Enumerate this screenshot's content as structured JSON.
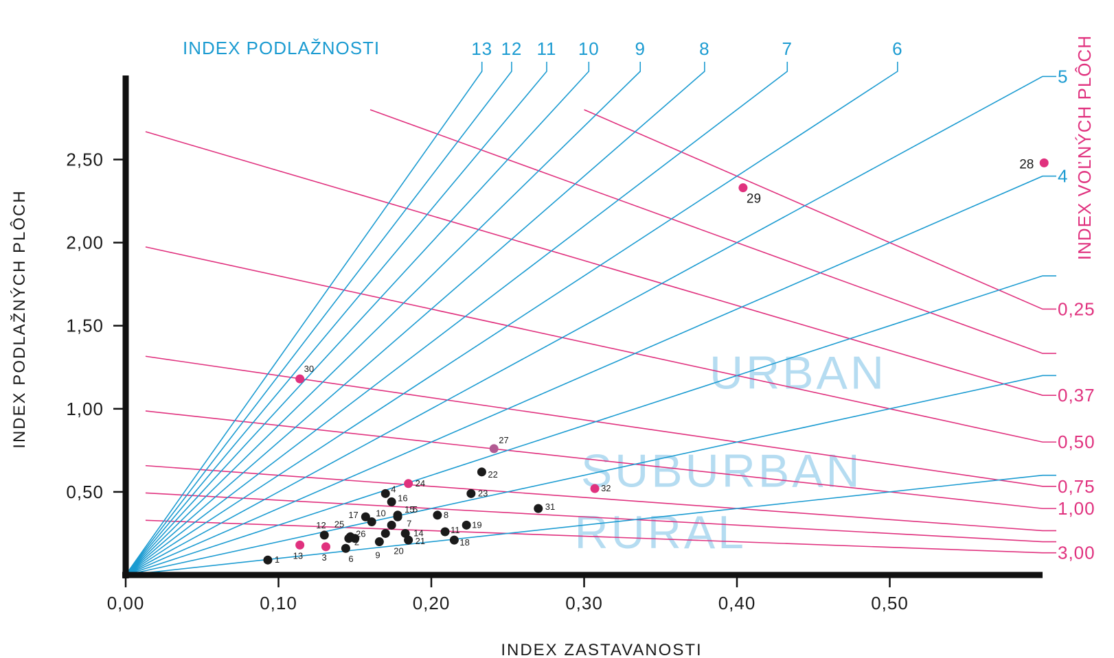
{
  "chart_data": {
    "type": "scatter",
    "title": "",
    "xlabel": "INDEX ZASTAVANOSTI",
    "ylabel": "INDEX PODLAŽNÝCH PLÔCH",
    "fsi_axis_title": "INDEX PODLAŽNOSTI",
    "osr_axis_title": "INDEX VOĽNÝCH PLÔCH",
    "xlim": [
      0,
      0.6
    ],
    "ylim": [
      0,
      2.8
    ],
    "x_ticks": [
      "0,00",
      "0,10",
      "0,20",
      "0,30",
      "0,40",
      "0,50"
    ],
    "x_tick_values": [
      0,
      0.1,
      0.2,
      0.3,
      0.4,
      0.5
    ],
    "y_ticks": [
      "0,50",
      "1,00",
      "1,50",
      "2,00",
      "2,50"
    ],
    "y_tick_values": [
      0.5,
      1.0,
      1.5,
      2.0,
      2.5
    ],
    "fsi_lines": [
      {
        "label": "13",
        "value": 13
      },
      {
        "label": "12",
        "value": 12
      },
      {
        "label": "11",
        "value": 11
      },
      {
        "label": "10",
        "value": 10
      },
      {
        "label": "9",
        "value": 9
      },
      {
        "label": "8",
        "value": 8
      },
      {
        "label": "7",
        "value": 7
      },
      {
        "label": "6",
        "value": 6
      },
      {
        "label": "5",
        "value": 5
      },
      {
        "label": "4",
        "value": 4
      },
      {
        "label": "",
        "value": 3
      },
      {
        "label": "",
        "value": 2
      },
      {
        "label": "",
        "value": 1
      }
    ],
    "osr_lines": [
      {
        "label": "0,25",
        "value": 0.25
      },
      {
        "label": "",
        "value": 0.3
      },
      {
        "label": "0,37",
        "value": 0.37
      },
      {
        "label": "0,50",
        "value": 0.5
      },
      {
        "label": "0,75",
        "value": 0.75
      },
      {
        "label": "1,00",
        "value": 1.0
      },
      {
        "label": "",
        "value": 1.5
      },
      {
        "label": "",
        "value": 2.0
      },
      {
        "label": "3,00",
        "value": 3.0
      }
    ],
    "zones": [
      "URBAN",
      "SUBURBAN",
      "RURAL"
    ],
    "colors": {
      "fsi": "#1b9bd1",
      "osr": "#e0317e",
      "zone": "#a9d6ef",
      "point_black": "#1a1a1a",
      "point_pink": "#e0317e",
      "point_violet": "#b25a92",
      "axis": "#111111"
    },
    "points": [
      {
        "id": "1",
        "x": 0.093,
        "y": 0.09,
        "color": "black"
      },
      {
        "id": "2",
        "x": 0.146,
        "y": 0.22,
        "color": "black"
      },
      {
        "id": "3",
        "x": 0.131,
        "y": 0.17,
        "color": "pink"
      },
      {
        "id": "4",
        "x": 0.17,
        "y": 0.49,
        "color": "black"
      },
      {
        "id": "5",
        "x": 0.178,
        "y": 0.35,
        "color": "black"
      },
      {
        "id": "6",
        "x": 0.144,
        "y": 0.16,
        "color": "black"
      },
      {
        "id": "7",
        "x": 0.174,
        "y": 0.3,
        "color": "black"
      },
      {
        "id": "8",
        "x": 0.204,
        "y": 0.36,
        "color": "black"
      },
      {
        "id": "9",
        "x": 0.166,
        "y": 0.2,
        "color": "black"
      },
      {
        "id": "10",
        "x": 0.161,
        "y": 0.32,
        "color": "black"
      },
      {
        "id": "11",
        "x": 0.209,
        "y": 0.26,
        "color": "black"
      },
      {
        "id": "12",
        "x": 0.13,
        "y": 0.24,
        "color": "black"
      },
      {
        "id": "13",
        "x": 0.114,
        "y": 0.18,
        "color": "pink"
      },
      {
        "id": "14",
        "x": 0.183,
        "y": 0.25,
        "color": "black"
      },
      {
        "id": "15",
        "x": 0.178,
        "y": 0.36,
        "color": "black"
      },
      {
        "id": "16",
        "x": 0.174,
        "y": 0.44,
        "color": "black"
      },
      {
        "id": "17",
        "x": 0.157,
        "y": 0.35,
        "color": "black"
      },
      {
        "id": "18",
        "x": 0.215,
        "y": 0.21,
        "color": "black"
      },
      {
        "id": "19",
        "x": 0.223,
        "y": 0.3,
        "color": "black"
      },
      {
        "id": "20",
        "x": 0.17,
        "y": 0.25,
        "color": "black"
      },
      {
        "id": "21",
        "x": 0.185,
        "y": 0.21,
        "color": "black"
      },
      {
        "id": "22",
        "x": 0.233,
        "y": 0.62,
        "color": "black"
      },
      {
        "id": "23",
        "x": 0.226,
        "y": 0.49,
        "color": "black"
      },
      {
        "id": "24",
        "x": 0.185,
        "y": 0.55,
        "color": "pink"
      },
      {
        "id": "25",
        "x": 0.15,
        "y": 0.22,
        "color": "black"
      },
      {
        "id": "26",
        "x": 0.147,
        "y": 0.23,
        "color": "black"
      },
      {
        "id": "27",
        "x": 0.241,
        "y": 0.76,
        "color": "violet"
      },
      {
        "id": "28",
        "x": 0.601,
        "y": 2.48,
        "color": "pink"
      },
      {
        "id": "29",
        "x": 0.404,
        "y": 2.33,
        "color": "pink"
      },
      {
        "id": "30",
        "x": 0.114,
        "y": 1.18,
        "color": "pink"
      },
      {
        "id": "31",
        "x": 0.27,
        "y": 0.4,
        "color": "black"
      },
      {
        "id": "32",
        "x": 0.307,
        "y": 0.52,
        "color": "pink"
      }
    ]
  }
}
